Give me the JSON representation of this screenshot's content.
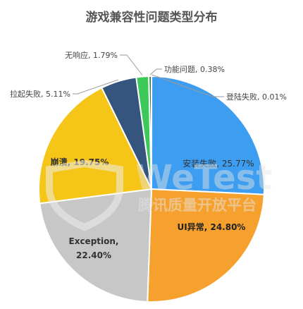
{
  "chart_data": {
    "type": "pie",
    "title": "游戏兼容性问题类型分布",
    "slices": [
      {
        "label": "登陆失败",
        "value": 0.01,
        "value_text": "0.01%",
        "color": "#f2f2f2"
      },
      {
        "label": "安装失败",
        "value": 25.77,
        "value_text": "25.77%",
        "color": "#3d9df0"
      },
      {
        "label": "UI异常",
        "value": 24.8,
        "value_text": "24.80%",
        "color": "#f6a12d"
      },
      {
        "label": "Exception,",
        "value": 22.4,
        "value_text": "22.40%",
        "color": "#c7c7c7"
      },
      {
        "label": "崩溃",
        "value": 19.75,
        "value_text": "19.75%",
        "color": "#f5c518"
      },
      {
        "label": "拉起失败",
        "value": 5.11,
        "value_text": "5.11%",
        "color": "#35557f"
      },
      {
        "label": "无响应",
        "value": 1.79,
        "value_text": "1.79%",
        "color": "#3cc95a"
      },
      {
        "label": "功能问题",
        "value": 0.38,
        "value_text": "0.38%",
        "color": "#2d7d3c"
      }
    ],
    "start_angle": "12 o'clock",
    "direction": "clockwise",
    "legend": "none"
  },
  "watermark": {
    "brand": "WeTest",
    "subtitle": "腾讯质量开放平台"
  }
}
